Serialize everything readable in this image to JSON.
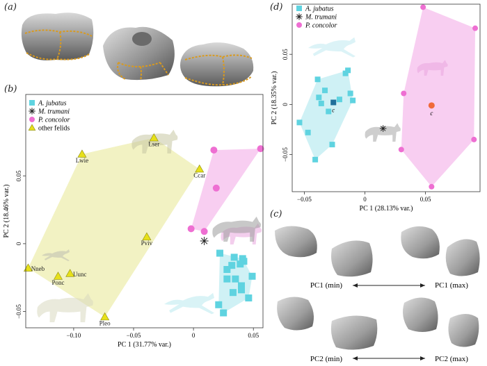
{
  "panel_labels": {
    "a": "(a)",
    "b": "(b)",
    "c": "(c)",
    "d": "(d)"
  },
  "colors": {
    "jubatus": "#5fd3e0",
    "jubatus_hull": "#c7eff3",
    "concolor": "#ee6fd2",
    "concolor_hull": "#f7c5ee",
    "felids": "#e7e01a",
    "felids_hull": "#f0f0b8",
    "trumani": "#222222",
    "centroid_jub": "#1f6f9a",
    "centroid_con": "#f06a3a"
  },
  "panel_c": {
    "pc1_min": "PC1 (min)",
    "pc1_max": "PC1 (max)",
    "pc2_min": "PC2 (min)",
    "pc2_max": "PC2 (max)"
  },
  "chart_data": [
    {
      "type": "scatter",
      "panel": "b",
      "xlabel": "PC 1 (31.77% var.)",
      "ylabel": "PC 2 (18.46% var.)",
      "xlim": [
        -0.14,
        0.058
      ],
      "ylim": [
        -0.062,
        0.11
      ],
      "xticks": [
        -0.1,
        -0.05,
        0,
        0.05
      ],
      "xtick_labels": [
        "−0.10",
        "−0.05",
        "0",
        "0.05"
      ],
      "yticks": [
        -0.05,
        0,
        0.05
      ],
      "ytick_labels": [
        "−0.05",
        "0",
        "0.05"
      ],
      "legend": {
        "placement": "top-left",
        "entries": [
          {
            "name": "A. jubatus",
            "marker": "square"
          },
          {
            "name": "M. trumani",
            "marker": "asterisk"
          },
          {
            "name": "P. concolor",
            "marker": "circle"
          },
          {
            "name": "other felids",
            "marker": "triangle"
          }
        ]
      },
      "series": [
        {
          "name": "A. jubatus",
          "marker": "square",
          "points": [
            [
              0.022,
              -0.007
            ],
            [
              0.034,
              -0.01
            ],
            [
              0.041,
              -0.011
            ],
            [
              0.042,
              -0.013
            ],
            [
              0.039,
              -0.015
            ],
            [
              0.032,
              -0.016
            ],
            [
              0.028,
              -0.019
            ],
            [
              0.049,
              -0.024
            ],
            [
              0.028,
              -0.026
            ],
            [
              0.035,
              -0.026
            ],
            [
              0.04,
              -0.031
            ],
            [
              0.04,
              -0.034
            ],
            [
              0.033,
              -0.036
            ],
            [
              0.046,
              -0.04
            ],
            [
              0.021,
              -0.045
            ],
            [
              0.025,
              -0.051
            ]
          ]
        },
        {
          "name": "M. trumani",
          "marker": "asterisk",
          "points": [
            [
              0.009,
              0.002
            ]
          ]
        },
        {
          "name": "P. concolor",
          "marker": "circle",
          "points": [
            [
              0.056,
              0.07
            ],
            [
              0.017,
              0.069
            ],
            [
              0.019,
              0.041
            ],
            [
              0.009,
              0.009
            ],
            [
              -0.002,
              0.011
            ]
          ]
        },
        {
          "name": "other felids",
          "marker": "triangle",
          "points": [
            [
              -0.033,
              0.078,
              "Lser"
            ],
            [
              -0.093,
              0.066,
              "Lwie"
            ],
            [
              0.005,
              0.055,
              "Ccar"
            ],
            [
              -0.039,
              0.005,
              "Pviv"
            ],
            [
              -0.138,
              -0.018,
              "Nneb"
            ],
            [
              -0.103,
              -0.022,
              "Uunc"
            ],
            [
              -0.113,
              -0.024,
              "Ponc"
            ],
            [
              -0.074,
              -0.054,
              "Pleo"
            ]
          ]
        }
      ]
    },
    {
      "type": "scatter",
      "panel": "d",
      "xlabel": "PC 1 (28.13% var.)",
      "ylabel": "PC 2 (18.35% var.)",
      "xlim": [
        -0.06,
        0.095
      ],
      "ylim": [
        -0.087,
        0.1
      ],
      "xticks": [
        -0.05,
        0,
        0.05
      ],
      "xtick_labels": [
        "−0.05",
        "0",
        "0.05"
      ],
      "yticks": [
        -0.05,
        0,
        0.05
      ],
      "ytick_labels": [
        "−0.05",
        "0",
        "0.05"
      ],
      "legend": {
        "placement": "top-left",
        "entries": [
          {
            "name": "A. jubatus",
            "marker": "square"
          },
          {
            "name": "M. trumani",
            "marker": "asterisk"
          },
          {
            "name": "P. concolor",
            "marker": "circle"
          }
        ]
      },
      "series": [
        {
          "name": "A. jubatus",
          "marker": "square",
          "points": [
            [
              -0.014,
              0.034
            ],
            [
              -0.016,
              0.031
            ],
            [
              -0.039,
              0.025
            ],
            [
              -0.033,
              0.014
            ],
            [
              -0.012,
              0.011
            ],
            [
              -0.01,
              0.004
            ],
            [
              -0.038,
              0.007
            ],
            [
              -0.036,
              0.001
            ],
            [
              -0.021,
              0.005
            ],
            [
              -0.03,
              -0.007
            ],
            [
              -0.054,
              -0.018
            ],
            [
              -0.047,
              -0.028
            ],
            [
              -0.027,
              -0.04
            ],
            [
              -0.041,
              -0.055
            ]
          ]
        },
        {
          "name": "M. trumani",
          "marker": "asterisk",
          "points": [
            [
              0.015,
              -0.024
            ]
          ]
        },
        {
          "name": "P. concolor",
          "marker": "circle",
          "points": [
            [
              0.048,
              0.097
            ],
            [
              0.091,
              0.076
            ],
            [
              0.032,
              0.011
            ],
            [
              0.09,
              -0.035
            ],
            [
              0.03,
              -0.045
            ],
            [
              0.055,
              -0.082
            ]
          ]
        }
      ],
      "centroids": [
        {
          "label": "c",
          "series": "A. jubatus",
          "x": -0.026,
          "y": 0.002
        },
        {
          "label": "c",
          "series": "P. concolor",
          "x": 0.055,
          "y": -0.001
        }
      ]
    }
  ]
}
